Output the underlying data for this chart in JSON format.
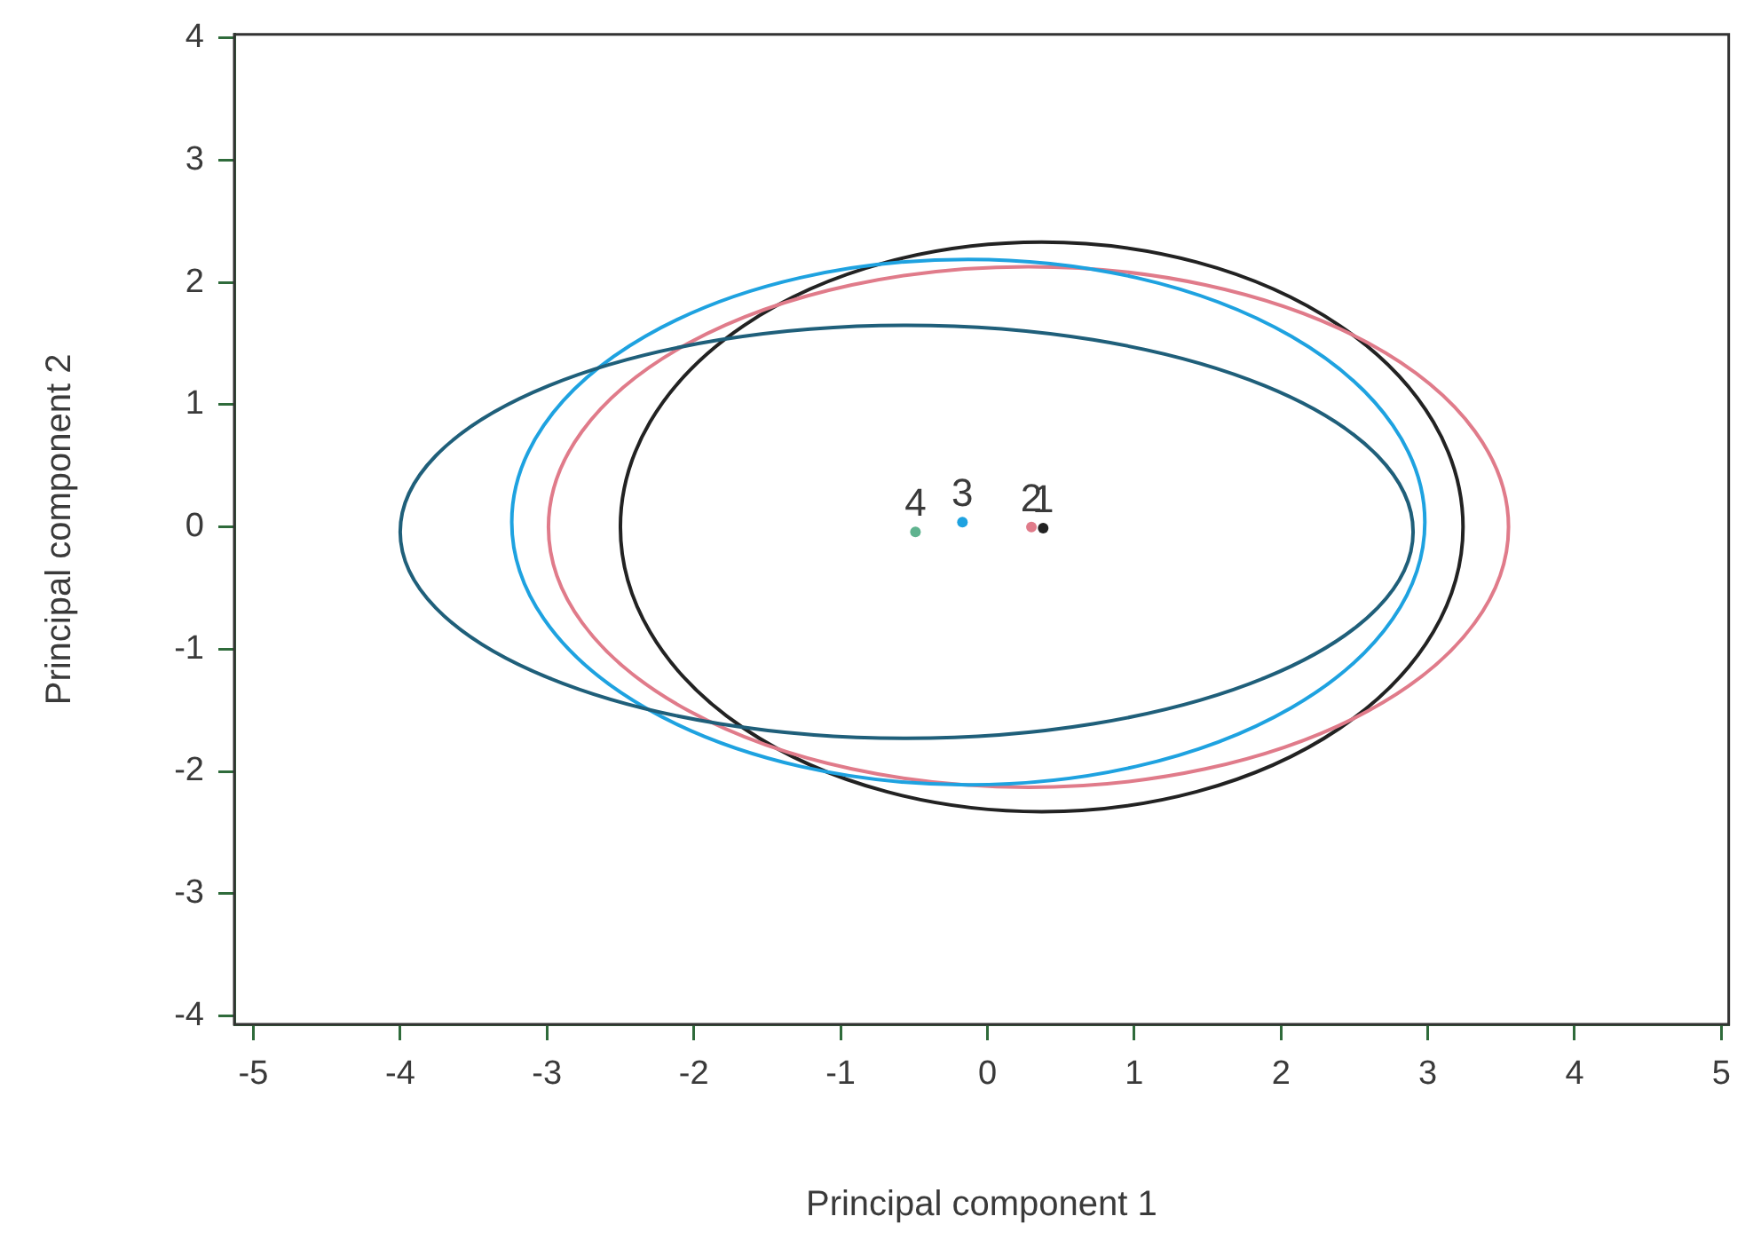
{
  "chart_data": {
    "type": "scatter",
    "xlabel": "Principal component 1",
    "ylabel": "Principal component 2",
    "xlim": [
      -5.13,
      5.05
    ],
    "ylim": [
      -4.07,
      4.03
    ],
    "xticks": [
      -5,
      -4,
      -3,
      -2,
      -1,
      0,
      1,
      2,
      3,
      4,
      5
    ],
    "yticks": [
      -4,
      -3,
      -2,
      -1,
      0,
      1,
      2,
      3,
      4
    ],
    "grid": false,
    "legend": false,
    "series": [
      {
        "type": "scatter",
        "marker": "circle",
        "colors": [
          "#222222",
          "#e07b8a",
          "#1ea2e0",
          "#5fb38f"
        ],
        "x": [
          0.38,
          0.3,
          -0.17,
          -0.49
        ],
        "values": [
          -0.01,
          0,
          0.04,
          -0.04
        ]
      }
    ],
    "annotations": [
      {
        "text": "1",
        "x": 0.38,
        "y": -0.01
      },
      {
        "text": "2",
        "x": 0.3,
        "y": 0
      },
      {
        "text": "3",
        "x": -0.17,
        "y": 0.04
      },
      {
        "text": "4",
        "x": -0.49,
        "y": -0.04
      }
    ]
  }
}
